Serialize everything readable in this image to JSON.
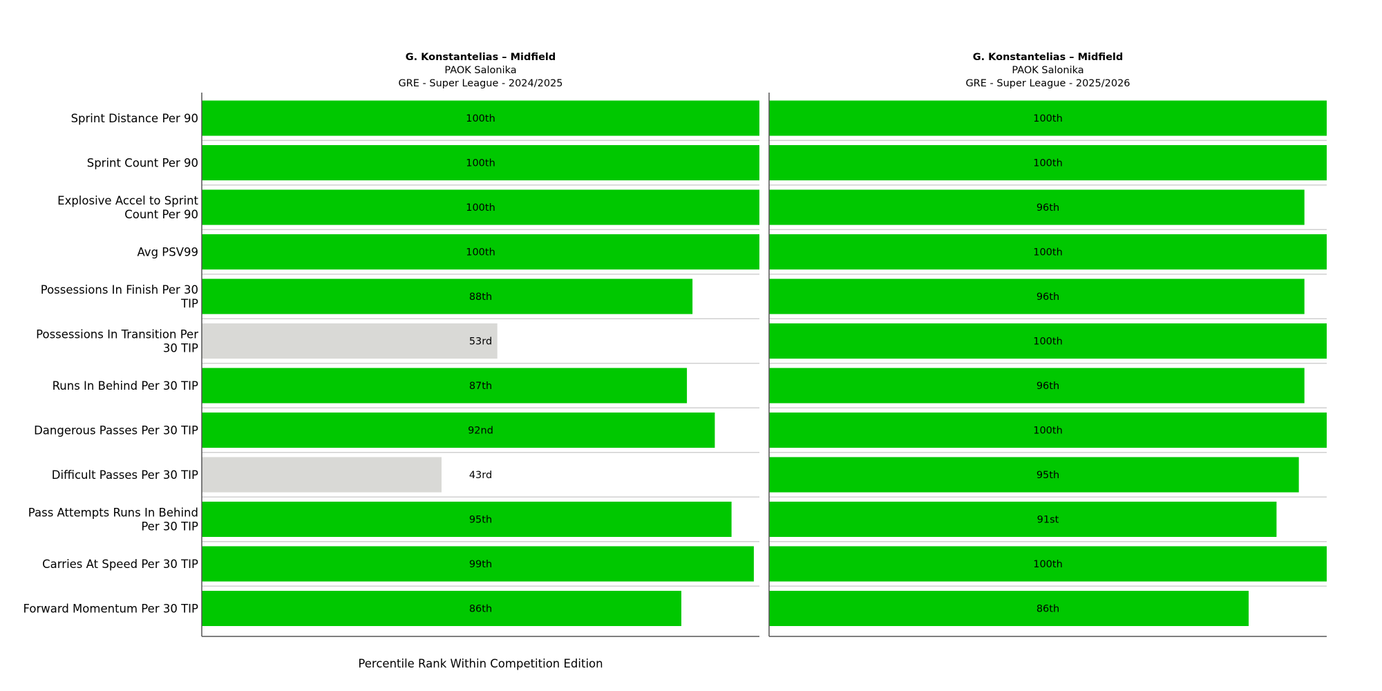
{
  "chart_data": {
    "type": "bar",
    "orientation": "horizontal",
    "xlabel": "Percentile Rank Within Competition Edition",
    "xlim": [
      0,
      100
    ],
    "categories": [
      [
        "Sprint Distance Per 90"
      ],
      [
        "Sprint Count Per 90"
      ],
      [
        "Explosive Accel to Sprint",
        "Count Per 90"
      ],
      [
        "Avg PSV99"
      ],
      [
        "Possessions In Finish Per 30",
        "TIP"
      ],
      [
        "Possessions In Transition Per",
        "30 TIP"
      ],
      [
        "Runs In Behind Per 30 TIP"
      ],
      [
        "Dangerous Passes Per 30 TIP"
      ],
      [
        "Difficult Passes Per 30 TIP"
      ],
      [
        "Pass Attempts Runs In Behind",
        "Per 30 TIP"
      ],
      [
        "Carries At Speed Per 30 TIP"
      ],
      [
        "Forward Momentum Per 30 TIP"
      ]
    ],
    "colors": {
      "high": "#00c800",
      "low": "#d9d9d6",
      "separator": "#d0d0d0",
      "axis": "#555555"
    },
    "panels": [
      {
        "title": "G. Konstantelias – Midfield",
        "subtitle1": "PAOK Salonika",
        "subtitle2": "GRE - Super League - 2024/2025",
        "values": [
          100,
          100,
          100,
          100,
          88,
          53,
          87,
          92,
          43,
          95,
          99,
          86
        ],
        "labels": [
          "100th",
          "100th",
          "100th",
          "100th",
          "88th",
          "53rd",
          "87th",
          "92nd",
          "43rd",
          "95th",
          "99th",
          "86th"
        ]
      },
      {
        "title": "G. Konstantelias – Midfield",
        "subtitle1": "PAOK Salonika",
        "subtitle2": "GRE - Super League - 2025/2026",
        "values": [
          100,
          100,
          96,
          100,
          96,
          100,
          96,
          100,
          95,
          91,
          100,
          86
        ],
        "labels": [
          "100th",
          "100th",
          "96th",
          "100th",
          "96th",
          "100th",
          "96th",
          "100th",
          "95th",
          "91st",
          "100th",
          "86th"
        ]
      }
    ]
  }
}
